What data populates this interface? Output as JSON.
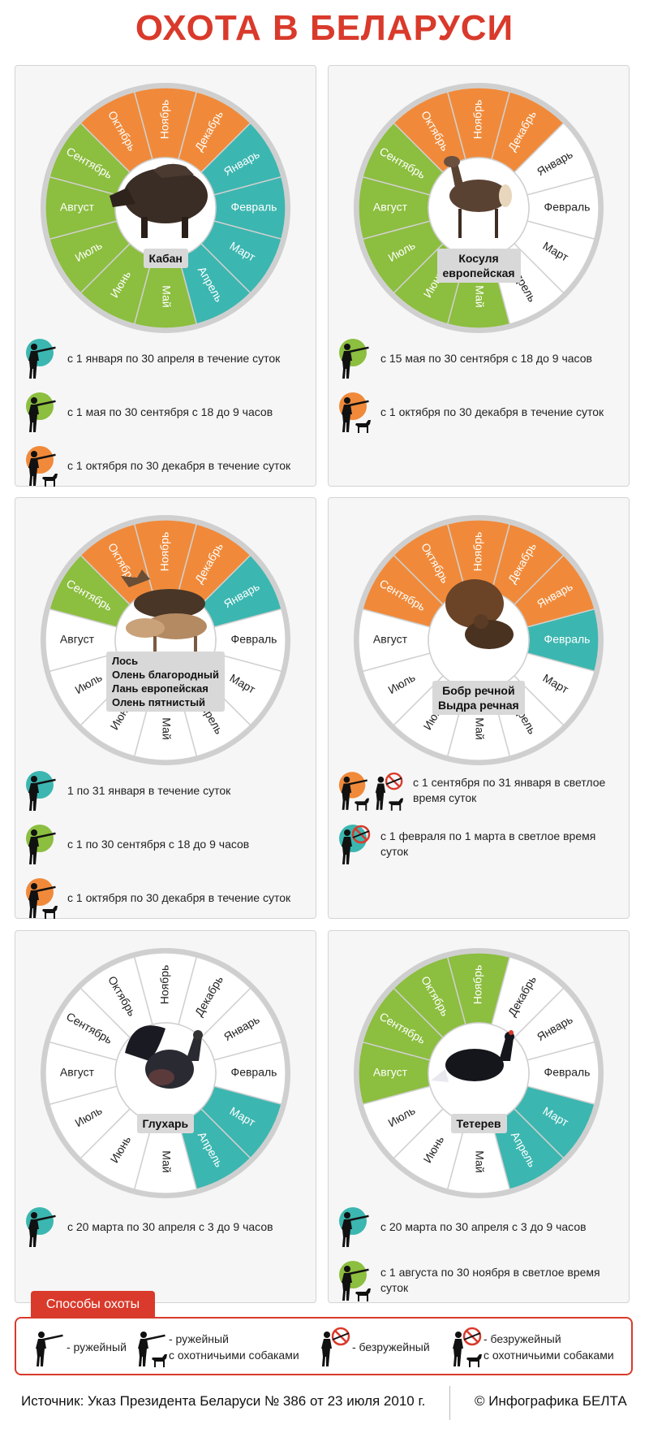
{
  "title": "ОХОТА В БЕЛАРУСИ",
  "months": [
    "Январь",
    "Февраль",
    "Март",
    "Апрель",
    "Май",
    "Июнь",
    "Июль",
    "Август",
    "Сентябрь",
    "Октябрь",
    "Ноябрь",
    "Декабрь"
  ],
  "colors": {
    "teal": "#3cb6b0",
    "green": "#8cbe3f",
    "orange": "#f08a3a",
    "white": "#ffffff",
    "red": "#d93a2b",
    "ring": "#cfcfcf"
  },
  "cards": [
    {
      "id": "boar",
      "label_lines": [
        "Кабан"
      ],
      "animal_icon": "boar-image",
      "month_colors": [
        "teal",
        "teal",
        "teal",
        "teal",
        "green",
        "green",
        "green",
        "green",
        "green",
        "orange",
        "orange",
        "orange"
      ],
      "rules": [
        {
          "icon": "rifle-icon",
          "circle": "teal",
          "text": "с 1 января по 30 апреля в течение суток"
        },
        {
          "icon": "rifle-icon",
          "circle": "green",
          "text": "с 1 мая по 30 сентября с 18 до 9 часов"
        },
        {
          "icon": "rifle-dog-icon",
          "circle": "orange",
          "text": "с 1 октября по 30 декабря в течение суток"
        }
      ]
    },
    {
      "id": "roe",
      "label_lines": [
        "Косуля",
        "европейская"
      ],
      "animal_icon": "roe-deer-image",
      "month_colors": [
        "white",
        "white",
        "white",
        "white",
        "green",
        "green",
        "green",
        "green",
        "green",
        "orange",
        "orange",
        "orange"
      ],
      "rules": [
        {
          "icon": "rifle-icon",
          "circle": "green",
          "text": "с 15 мая по 30 сентября с 18 до 9 часов"
        },
        {
          "icon": "rifle-dog-icon",
          "circle": "orange",
          "text": "с 1 октября по 30 декабря в течение суток"
        }
      ]
    },
    {
      "id": "deer",
      "label_lines": [
        "Лось",
        "Олень благородный",
        "Лань европейская",
        "Олень пятнистый"
      ],
      "animal_icon": "deer-group-image",
      "month_colors": [
        "teal",
        "white",
        "white",
        "white",
        "white",
        "white",
        "white",
        "white",
        "green",
        "orange",
        "orange",
        "orange"
      ],
      "rules": [
        {
          "icon": "rifle-icon",
          "circle": "teal",
          "text": "1 по 31 января в течение суток"
        },
        {
          "icon": "rifle-icon",
          "circle": "green",
          "text": "с 1 по 30 сентября с 18 до 9 часов"
        },
        {
          "icon": "rifle-dog-icon",
          "circle": "orange",
          "text": "с 1 октября по 30 декабря в течение суток"
        }
      ]
    },
    {
      "id": "beaver",
      "label_lines": [
        "Бобр речной",
        "Выдра речная"
      ],
      "animal_icon": "beaver-otter-image",
      "month_colors": [
        "orange",
        "teal",
        "white",
        "white",
        "white",
        "white",
        "white",
        "white",
        "orange",
        "orange",
        "orange",
        "orange"
      ],
      "rules": [
        {
          "icon": "rifle-dog-noweapon-icon",
          "circle": "orange",
          "text": "с 1 сентября по 31 января в светлое время суток"
        },
        {
          "icon": "noweapon-icon",
          "circle": "teal",
          "text": "с 1 февраля по 1 марта в светлое время суток"
        }
      ]
    },
    {
      "id": "capercaillie",
      "label_lines": [
        "Глухарь"
      ],
      "animal_icon": "capercaillie-image",
      "month_colors": [
        "white",
        "white",
        "teal",
        "teal",
        "white",
        "white",
        "white",
        "white",
        "white",
        "white",
        "white",
        "white"
      ],
      "rules": [
        {
          "icon": "rifle-icon",
          "circle": "teal",
          "text": "с 20 марта по 30 апреля с 3 до 9 часов"
        }
      ]
    },
    {
      "id": "blackgrouse",
      "label_lines": [
        "Тетерев"
      ],
      "animal_icon": "black-grouse-image",
      "month_colors": [
        "white",
        "white",
        "teal",
        "teal",
        "white",
        "white",
        "white",
        "green",
        "green",
        "green",
        "green",
        "white"
      ],
      "rules": [
        {
          "icon": "rifle-icon",
          "circle": "teal",
          "text": "с 20 марта по 30 апреля с 3 до 9 часов"
        },
        {
          "icon": "rifle-dog-icon",
          "circle": "green",
          "text": "с 1 августа по 30 ноября в светлое время суток"
        }
      ]
    }
  ],
  "legend": {
    "title": "Способы охоты",
    "items": [
      {
        "icon": "rifle-icon",
        "text": "- ружейный"
      },
      {
        "icon": "rifle-dog-icon",
        "text": "- ружейный\nс охотничьими собаками"
      },
      {
        "icon": "noweapon-icon",
        "text": "- безружейный"
      },
      {
        "icon": "noweapon-dog-icon",
        "text": "- безружейный\nс охотничьими собаками"
      }
    ]
  },
  "footer": {
    "source": "Источник: Указ Президента Беларуси  № 386 от 23 июля 2010 г.",
    "credit": "© Инфографика БЕЛТА"
  }
}
